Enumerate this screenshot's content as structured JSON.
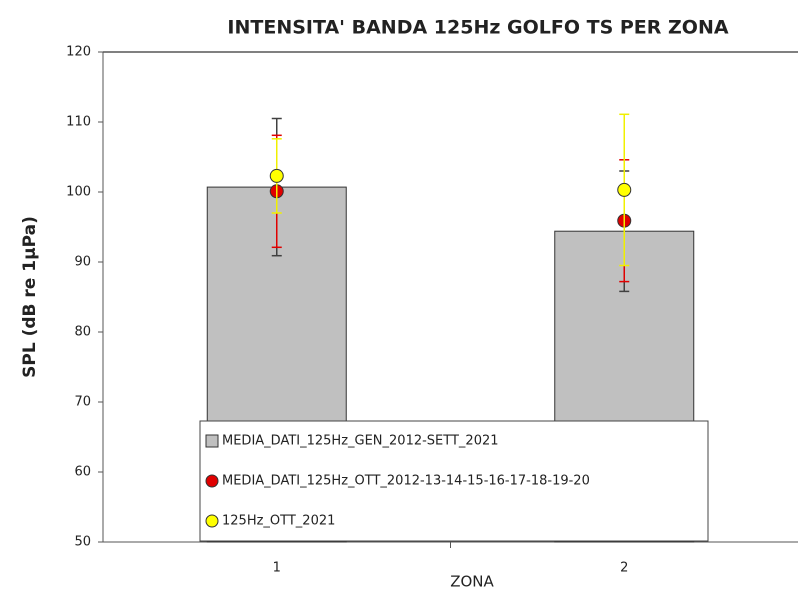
{
  "chart_data": {
    "type": "bar",
    "title": "INTENSITA' BANDA 125Hz GOLFO TS PER ZONA",
    "x_label": "ZONA",
    "y_label": "SPL (dB re 1µPa)",
    "categories": [
      "1",
      "2"
    ],
    "ylim": [
      50,
      120
    ],
    "yticks": [
      50,
      60,
      70,
      80,
      90,
      100,
      110,
      120
    ],
    "series": [
      {
        "name": "MEDIA_DATI_125Hz_GEN_2012-SETT_2021",
        "type": "bar",
        "color": "#c0c0c0",
        "error_color": "#404040",
        "values": [
          100.7,
          94.4
        ],
        "errors": [
          9.8,
          8.6
        ]
      },
      {
        "name": "MEDIA_DATI_125Hz_OTT_2012-13-14-15-16-17-18-19-20",
        "type": "scatter",
        "color": "#e00000",
        "error_color": "#e00000",
        "values": [
          100.1,
          95.9
        ],
        "errors": [
          8.0,
          8.7
        ]
      },
      {
        "name": "125Hz_OTT_2021",
        "type": "scatter",
        "color": "#ffff00",
        "error_color": "#f0f000",
        "values": [
          102.3,
          100.3
        ],
        "errors": [
          5.3,
          10.8
        ]
      }
    ]
  }
}
